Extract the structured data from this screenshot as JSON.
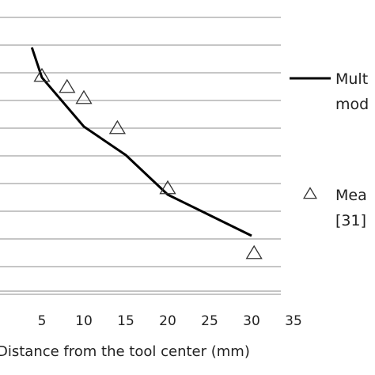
{
  "chart_data": {
    "type": "line",
    "xlabel": "Distance from the tool center (mm)",
    "xlim": [
      0,
      35
    ],
    "x_ticks": [
      "5",
      "10",
      "15",
      "20",
      "25",
      "30",
      "35"
    ],
    "gridlines": "horizontal",
    "legend_position": "right",
    "series": [
      {
        "name": "Multi-model (truncated)",
        "legend_label_lines": [
          "Mult",
          "mod"
        ],
        "marker": "none",
        "color": "#000000",
        "x": [
          3.8,
          5,
          10,
          15,
          20,
          25,
          30
        ],
        "y": [
          308,
          270,
          208,
          172,
          122,
          96,
          70
        ]
      },
      {
        "name": "Measured (truncated)",
        "legend_label_lines": [
          "Mea",
          "[31]"
        ],
        "marker": "triangle-open",
        "color": "#333333",
        "x": [
          5,
          8,
          10,
          14,
          20,
          30.3
        ],
        "y": [
          272,
          258,
          244,
          206,
          130,
          48
        ]
      }
    ]
  }
}
